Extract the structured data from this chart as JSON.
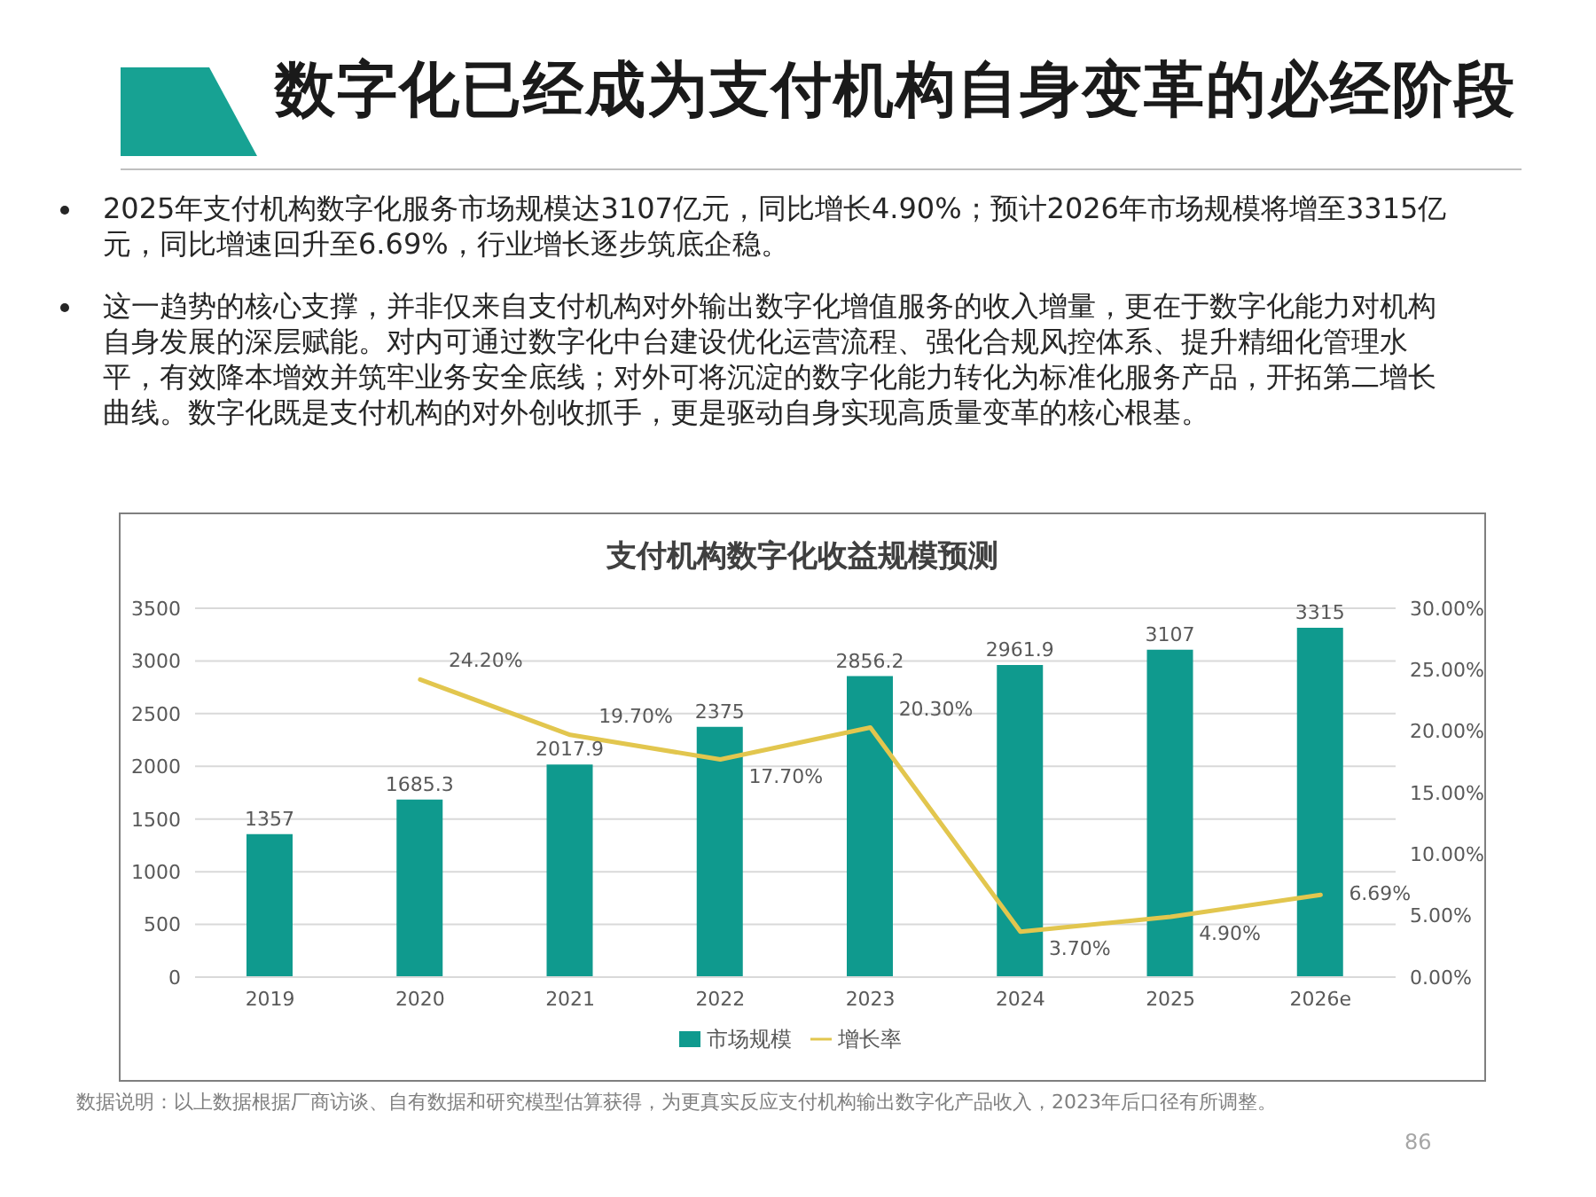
{
  "chart_data": {
    "type": "bar",
    "title": "数字化已经成为支付机构自身变革的必经阶段",
    "subtitle": "支付机构数字化收益规模预测",
    "annotations": [
      "2025年支付机构数字化服务市场规模达3107亿元，同比增长4.90%；预计2026年市场规模将增至3315亿元，同比增速回升至6.69%，行业增长逐步筑底企稳。",
      "这一趋势的核心支撑，并非仅来自支付机构对外输出数字化增值服务的收入增量，更在于数字化能力对机构自身发展的深层赋能。对内可通过数字化中台建设优化运营流程、强化合规风控体系、提升精细化管理水平，有效降本增效并筑牢业务安全底线；对外可将沉淀的数字化能力转化为标准化服务产品，开拓第二增长曲线。数字化既是支付机构的对外创收抓手，更是驱动自身实现高质量变革的核心根基。",
      "数据说明：以上数据根据厂商访谈、自有数据和研究模型估算获得，为更真实反应支付机构输出数字化产品收入，2023年后口径有所调整。",
      "86"
    ],
    "categories": [
      "2019",
      "2020",
      "2021",
      "2022",
      "2023",
      "2024",
      "2025",
      "2026e"
    ],
    "series": [
      {
        "name": "市场规模",
        "color": "#0f9a8e",
        "values": [
          1357,
          1685.3,
          2017.9,
          2375,
          2856.2,
          2961.9,
          3107,
          3315
        ],
        "value_labels": [
          "1357",
          "1685.3",
          "2017.9",
          "2375",
          "2856.2",
          "2961.9",
          "3107",
          "3315"
        ]
      },
      {
        "name": "增长率",
        "type": "line",
        "axis": "y2",
        "color": "#e2c64e",
        "values": [
          null,
          24.2,
          19.7,
          17.7,
          20.3,
          3.7,
          4.9,
          6.69
        ],
        "value_labels": [
          null,
          "24.20%",
          "19.70%",
          "17.70%",
          "20.30%",
          "3.70%",
          "4.90%",
          "6.69%"
        ]
      }
    ],
    "ylim": [
      0,
      3500
    ],
    "yticks": [
      0,
      500,
      1000,
      1500,
      2000,
      2500,
      3000,
      3500
    ],
    "y2lim": [
      0,
      30
    ],
    "y2ticks": [
      {
        "value": 0,
        "label": "0.00%"
      },
      {
        "value": 5,
        "label": "5.00%"
      },
      {
        "value": 10,
        "label": "10.00%"
      },
      {
        "value": 15,
        "label": "15.00%"
      },
      {
        "value": 20,
        "label": "20.00%"
      },
      {
        "value": 25,
        "label": "25.00%"
      },
      {
        "value": 30,
        "label": "30.00%"
      }
    ],
    "grid": "y",
    "legend": "bottom",
    "marker": "none"
  }
}
